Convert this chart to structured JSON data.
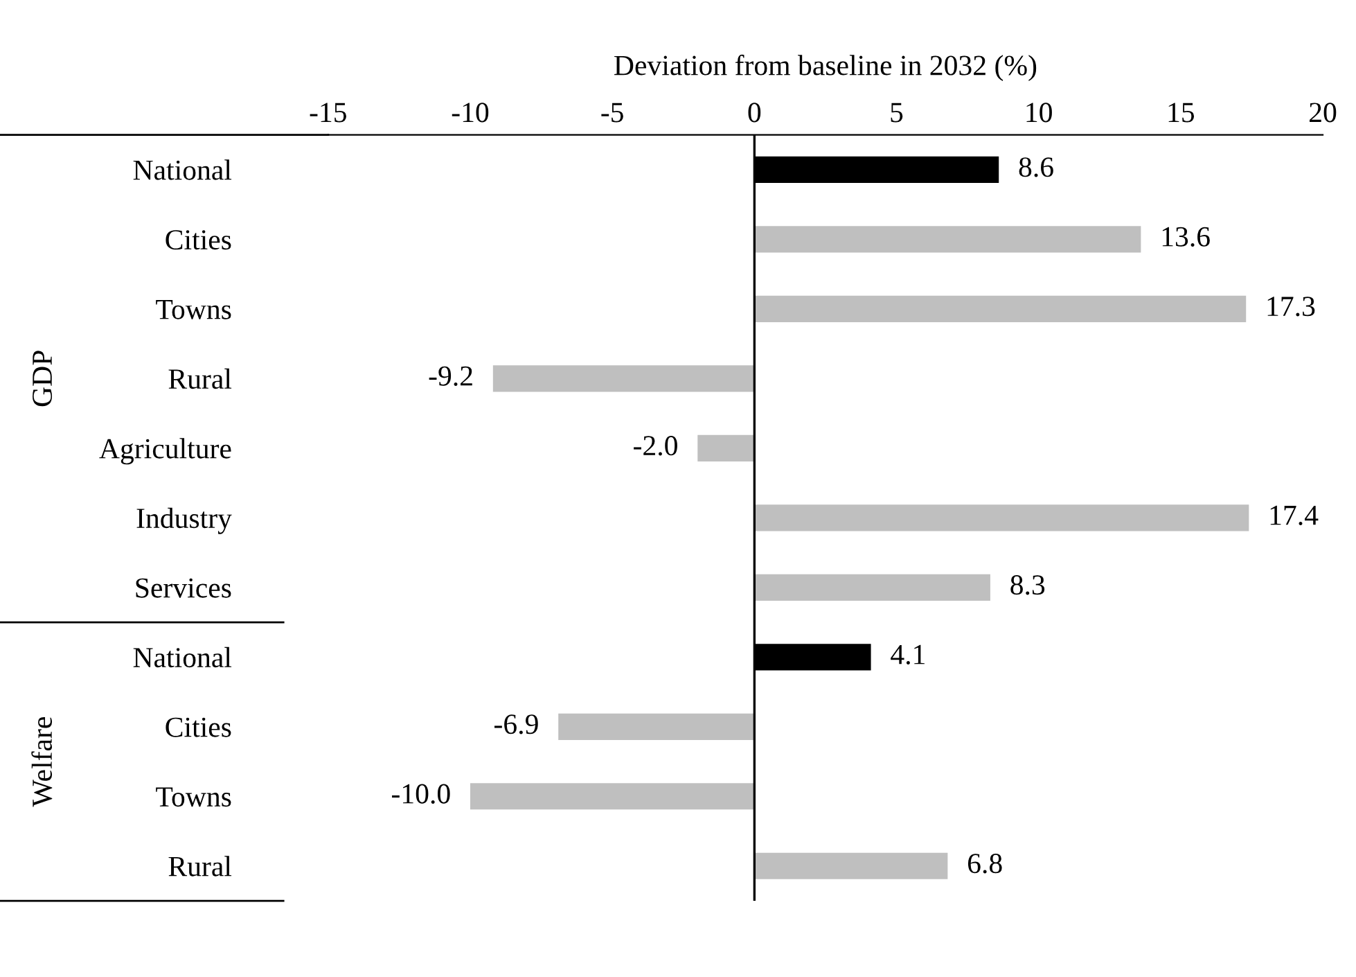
{
  "chart_data": {
    "type": "bar",
    "orientation": "horizontal",
    "xlabel": "Deviation from baseline in 2032 (%)",
    "categories": [
      "National",
      "Cities",
      "Towns",
      "Rural",
      "Agriculture",
      "Industry",
      "Services",
      "National",
      "Cities",
      "Towns",
      "Rural"
    ],
    "values": [
      8.6,
      13.6,
      17.3,
      -9.2,
      -2.0,
      17.4,
      8.3,
      4.1,
      -6.9,
      -10.0,
      6.8
    ],
    "value_labels": [
      "8.6",
      "13.6",
      "17.3",
      "-9.2",
      "-2.0",
      "17.4",
      "8.3",
      "4.1",
      "-6.9",
      "-10.0",
      "6.8"
    ],
    "colors": [
      "#000000",
      "#bfbfbf",
      "#bfbfbf",
      "#bfbfbf",
      "#bfbfbf",
      "#bfbfbf",
      "#bfbfbf",
      "#000000",
      "#bfbfbf",
      "#bfbfbf",
      "#bfbfbf"
    ],
    "xlim": [
      -15,
      20
    ],
    "xticks": [
      -15,
      -10,
      -5,
      0,
      5,
      10,
      15,
      20
    ],
    "annotations": [
      "GDP",
      "Welfare"
    ],
    "ref_lines": [
      {
        "axis": "x",
        "value": 0,
        "color": "#000000",
        "line_style": "solid"
      }
    ],
    "grid": false,
    "legend": false
  }
}
